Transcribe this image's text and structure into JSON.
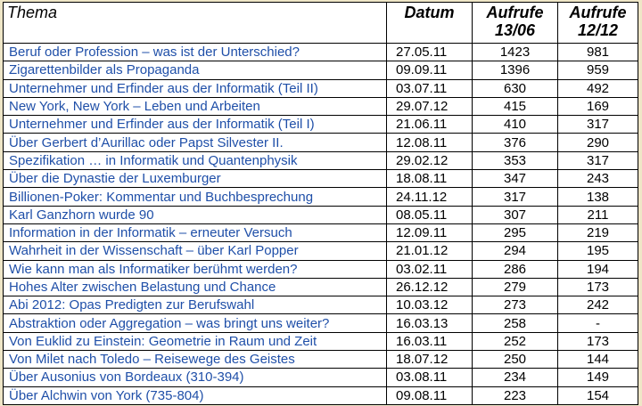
{
  "table": {
    "headers": {
      "thema": "Thema",
      "datum": "Datum",
      "aufrufe_1_line1": "Aufrufe",
      "aufrufe_1_line2": "13/06",
      "aufrufe_2_line1": "Aufrufe",
      "aufrufe_2_line2": "12/12"
    },
    "rows": [
      {
        "title": "Beruf oder Profession – was ist der Unterschied?",
        "date": "27.05.11",
        "views_1306": "1423",
        "views_1212": "981"
      },
      {
        "title": "Zigarettenbilder als Propaganda",
        "date": "09.09.11",
        "views_1306": "1396",
        "views_1212": "959"
      },
      {
        "title": "Unternehmer und Erfinder aus der Informatik (Teil II)",
        "date": "03.07.11",
        "views_1306": "630",
        "views_1212": "492"
      },
      {
        "title": "New York, New York – Leben und Arbeiten",
        "date": "29.07.12",
        "views_1306": "415",
        "views_1212": "169"
      },
      {
        "title": "Unternehmer und Erfinder aus der Informatik (Teil I)",
        "date": "21.06.11",
        "views_1306": "410",
        "views_1212": "317"
      },
      {
        "title": "Über Gerbert d’Aurillac oder Papst Silvester II.",
        "date": "12.08.11",
        "views_1306": "376",
        "views_1212": "290"
      },
      {
        "title": "Spezifikation … in Informatik und Quantenphysik",
        "date": "29.02.12",
        "views_1306": "353",
        "views_1212": "317"
      },
      {
        "title": "Über die Dynastie der Luxemburger",
        "date": "18.08.11",
        "views_1306": "347",
        "views_1212": "243"
      },
      {
        "title": "Billionen-Poker: Kommentar und Buchbesprechung",
        "date": "24.11.12",
        "views_1306": "317",
        "views_1212": "138"
      },
      {
        "title": "Karl Ganzhorn wurde 90",
        "date": "08.05.11",
        "views_1306": "307",
        "views_1212": "211"
      },
      {
        "title": "Information in der Informatik – erneuter Versuch",
        "date": "12.09.11",
        "views_1306": "295",
        "views_1212": "219"
      },
      {
        "title": "Wahrheit in der Wissenschaft – über Karl Popper",
        "date": "21.01.12",
        "views_1306": "294",
        "views_1212": "195"
      },
      {
        "title": "Wie kann man als Informatiker berühmt werden?",
        "date": "03.02.11",
        "views_1306": "286",
        "views_1212": "194"
      },
      {
        "title": "Hohes Alter zwischen Belastung und Chance",
        "date": "26.12.12",
        "views_1306": "279",
        "views_1212": "173"
      },
      {
        "title": "Abi 2012: Opas Predigten zur Berufswahl",
        "date": "10.03.12",
        "views_1306": "273",
        "views_1212": "242"
      },
      {
        "title": "Abstraktion oder Aggregation – was bringt uns weiter?",
        "date": "16.03.13",
        "views_1306": "258",
        "views_1212": "-"
      },
      {
        "title": "Von Euklid zu Einstein: Geometrie in Raum und Zeit",
        "date": "16.03.11",
        "views_1306": "252",
        "views_1212": "173"
      },
      {
        "title": "Von Milet nach Toledo – Reisewege des Geistes",
        "date": "18.07.12",
        "views_1306": "250",
        "views_1212": "144"
      },
      {
        "title": "Über Ausonius von Bordeaux (310-394)",
        "date": "03.08.11",
        "views_1306": "234",
        "views_1212": "149"
      },
      {
        "title": "Über Alchwin von York (735-804)",
        "date": "09.08.11",
        "views_1306": "223",
        "views_1212": "154"
      }
    ]
  }
}
